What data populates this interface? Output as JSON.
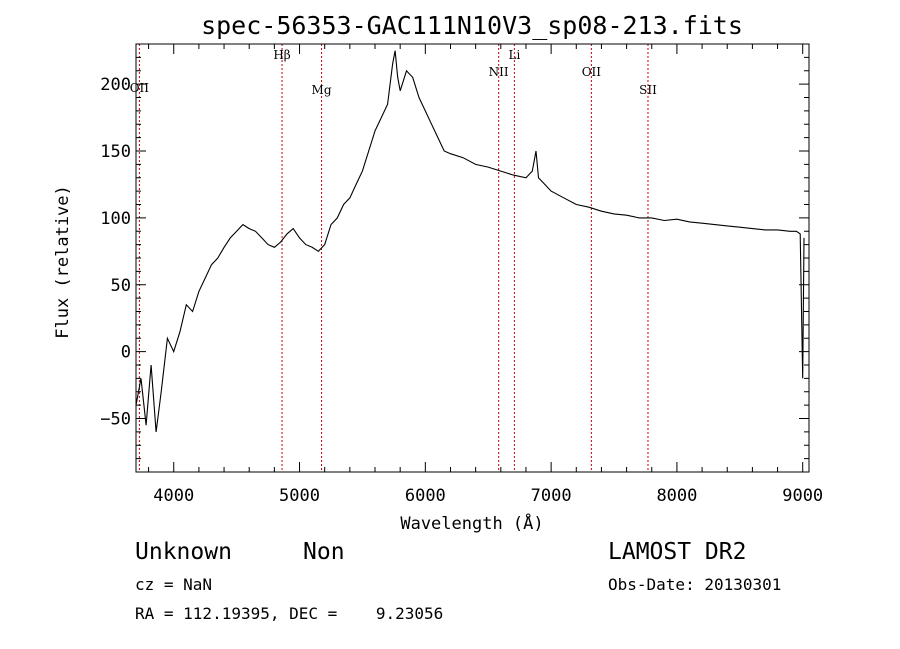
{
  "chart_data": {
    "type": "line",
    "title": "spec-56353-GAC111N10V3_sp08-213.fits",
    "xlabel": "Wavelength (Å)",
    "ylabel": "Flux (relative)",
    "xlim": [
      3700,
      9050
    ],
    "ylim": [
      -90,
      230
    ],
    "xticks": [
      4000,
      5000,
      6000,
      7000,
      8000,
      9000
    ],
    "yticks": [
      -50,
      0,
      50,
      100,
      150,
      200
    ],
    "grid": false,
    "series": [
      {
        "x": [
          3700,
          3740,
          3780,
          3820,
          3860,
          3900,
          3950,
          4000,
          4050,
          4100,
          4150,
          4200,
          4250,
          4300,
          4350,
          4400,
          4450,
          4500,
          4550,
          4600,
          4650,
          4700,
          4750,
          4800,
          4850,
          4900,
          4950,
          5000,
          5050,
          5100,
          5150,
          5200,
          5250,
          5300,
          5350,
          5400,
          5450,
          5500,
          5550,
          5600,
          5650,
          5700,
          5720,
          5740,
          5760,
          5780,
          5800,
          5850,
          5900,
          5950,
          6000,
          6050,
          6100,
          6150,
          6200,
          6300,
          6400,
          6500,
          6600,
          6700,
          6800,
          6850,
          6880,
          6900,
          6950,
          7000,
          7100,
          7200,
          7300,
          7400,
          7500,
          7600,
          7700,
          7800,
          7900,
          8000,
          8100,
          8200,
          8300,
          8400,
          8500,
          8600,
          8700,
          8800,
          8900,
          8950,
          8980,
          9000,
          9010
        ],
        "y": [
          -40,
          -20,
          -55,
          -10,
          -60,
          -30,
          10,
          0,
          15,
          35,
          30,
          45,
          55,
          65,
          70,
          78,
          85,
          90,
          95,
          92,
          90,
          85,
          80,
          78,
          82,
          88,
          92,
          85,
          80,
          78,
          75,
          80,
          95,
          100,
          110,
          115,
          125,
          135,
          150,
          165,
          175,
          185,
          200,
          215,
          225,
          205,
          195,
          210,
          205,
          190,
          180,
          170,
          160,
          150,
          148,
          145,
          140,
          138,
          135,
          132,
          130,
          135,
          150,
          130,
          125,
          120,
          115,
          110,
          108,
          105,
          103,
          102,
          100,
          100,
          98,
          99,
          97,
          96,
          95,
          94,
          93,
          92,
          91,
          91,
          90,
          90,
          88,
          -20,
          85
        ]
      }
    ],
    "line_markers": [
      {
        "label": "OII",
        "x": 3727
      },
      {
        "label": "Hβ",
        "x": 4861
      },
      {
        "label": "Mg",
        "x": 5175
      },
      {
        "label": "NII",
        "x": 6583
      },
      {
        "label": "Li",
        "x": 6708
      },
      {
        "label": "OII",
        "x": 7320
      },
      {
        "label": "SII",
        "x": 7770
      }
    ],
    "line_marker_color": "#cc0000"
  },
  "info": {
    "class": "Unknown",
    "subclass": "Non",
    "survey": "LAMOST DR2",
    "redshift": "cz = NaN",
    "obs_date": "Obs-Date: 20130301",
    "coords": "RA = 112.19395, DEC =    9.23056"
  }
}
